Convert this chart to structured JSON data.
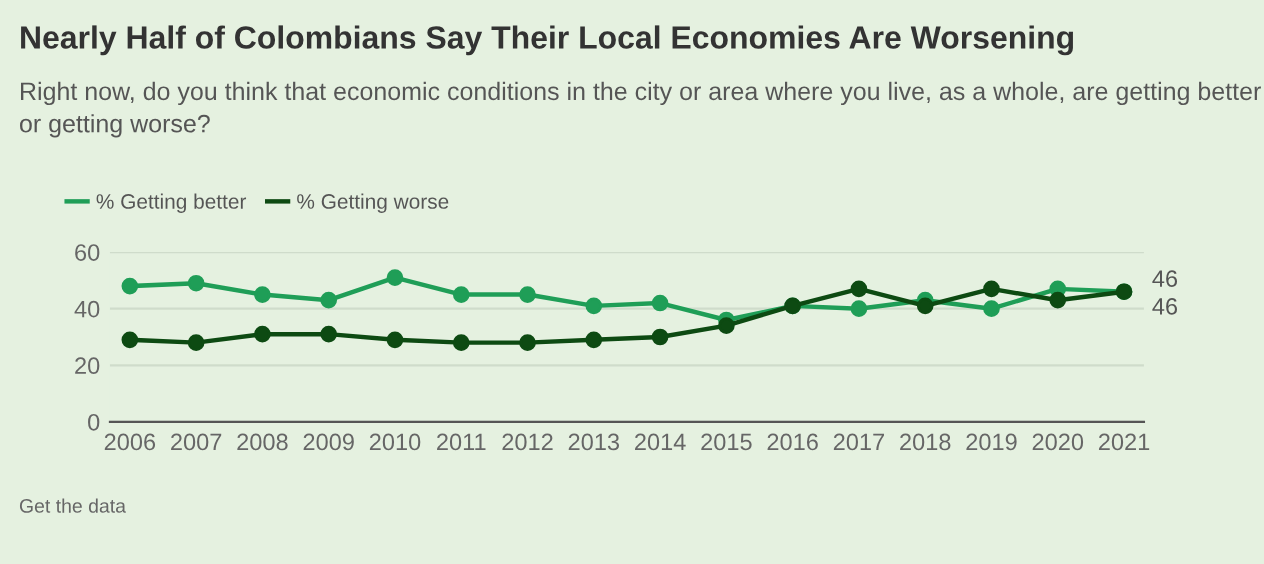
{
  "chart_data": {
    "type": "line",
    "title": "Nearly Half of Colombians Say Their Local Economies Are Worsening",
    "subtitle": "Right now, do you think that economic conditions in the city or area where you live, as a whole, are getting better or getting worse?",
    "categories": [
      "2006",
      "2007",
      "2008",
      "2009",
      "2010",
      "2011",
      "2012",
      "2013",
      "2014",
      "2015",
      "2016",
      "2017",
      "2018",
      "2019",
      "2020",
      "2021"
    ],
    "series": [
      {
        "name": "% Getting better",
        "color": "#1f9e57",
        "values": [
          48,
          49,
          45,
          43,
          51,
          45,
          45,
          41,
          42,
          36,
          41,
          40,
          43,
          40,
          47,
          46
        ],
        "value_labels": [
          null,
          null,
          null,
          null,
          null,
          null,
          null,
          null,
          null,
          null,
          null,
          null,
          null,
          null,
          null,
          "46"
        ]
      },
      {
        "name": "% Getting worse",
        "color": "#0d4a12",
        "values": [
          29,
          28,
          31,
          31,
          29,
          28,
          28,
          29,
          30,
          34,
          41,
          47,
          41,
          47,
          43,
          46
        ],
        "value_labels": [
          null,
          null,
          null,
          null,
          null,
          null,
          null,
          null,
          null,
          null,
          null,
          null,
          null,
          null,
          null,
          "46"
        ]
      }
    ],
    "ylim": [
      0,
      60
    ],
    "yticks": [
      0,
      20,
      40,
      60
    ],
    "grid": "y",
    "legend": "top left",
    "marker": "circle",
    "line_style": "solid",
    "annotations": [
      "Get the data"
    ]
  }
}
